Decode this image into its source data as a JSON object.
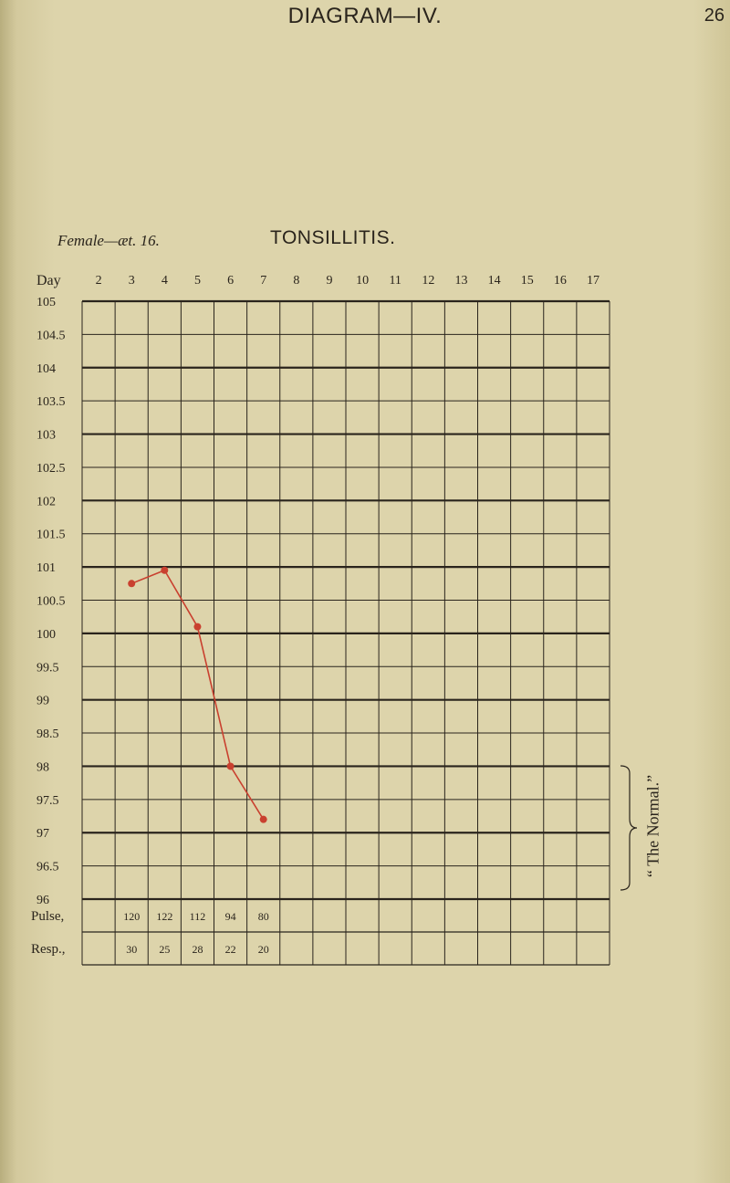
{
  "header": {
    "title": "DIAGRAM—IV.",
    "page_number": "26"
  },
  "patient": "Female—æt. 16.",
  "side_label": "“ The Normal.”",
  "chart_data": {
    "type": "line",
    "title": "TONSILLITIS.",
    "x_label": "Day",
    "days": [
      "2",
      "3",
      "4",
      "5",
      "6",
      "7",
      "8",
      "9",
      "10",
      "11",
      "12",
      "13",
      "14",
      "15",
      "16",
      "17"
    ],
    "y_ticks": [
      "105",
      "104.5",
      "104",
      "103.5",
      "103",
      "102.5",
      "102",
      "101.5",
      "101",
      "100.5",
      "100",
      "99.5",
      "99",
      "98.5",
      "98",
      "97.5",
      "97",
      "96.5",
      "96"
    ],
    "ylim": [
      96,
      105
    ],
    "normal_band": [
      96,
      98
    ],
    "series": [
      {
        "name": "",
        "color": "#c9402f",
        "points": [
          {
            "day": 3,
            "temp": 100.75
          },
          {
            "day": 4,
            "temp": 100.95
          },
          {
            "day": 5,
            "temp": 100.1
          },
          {
            "day": 6,
            "temp": 98.0
          },
          {
            "day": 7,
            "temp": 97.2
          }
        ]
      }
    ],
    "rows": [
      {
        "label": "Pulse,",
        "cells": [
          "",
          "120",
          "122",
          "112",
          "94",
          "80",
          "",
          "",
          "",
          "",
          "",
          "",
          "",
          "",
          "",
          ""
        ]
      },
      {
        "label": "Resp.,",
        "cells": [
          "",
          "30",
          "25",
          "28",
          "22",
          "20",
          "",
          "",
          "",
          "",
          "",
          "",
          "",
          "",
          "",
          ""
        ]
      }
    ]
  }
}
